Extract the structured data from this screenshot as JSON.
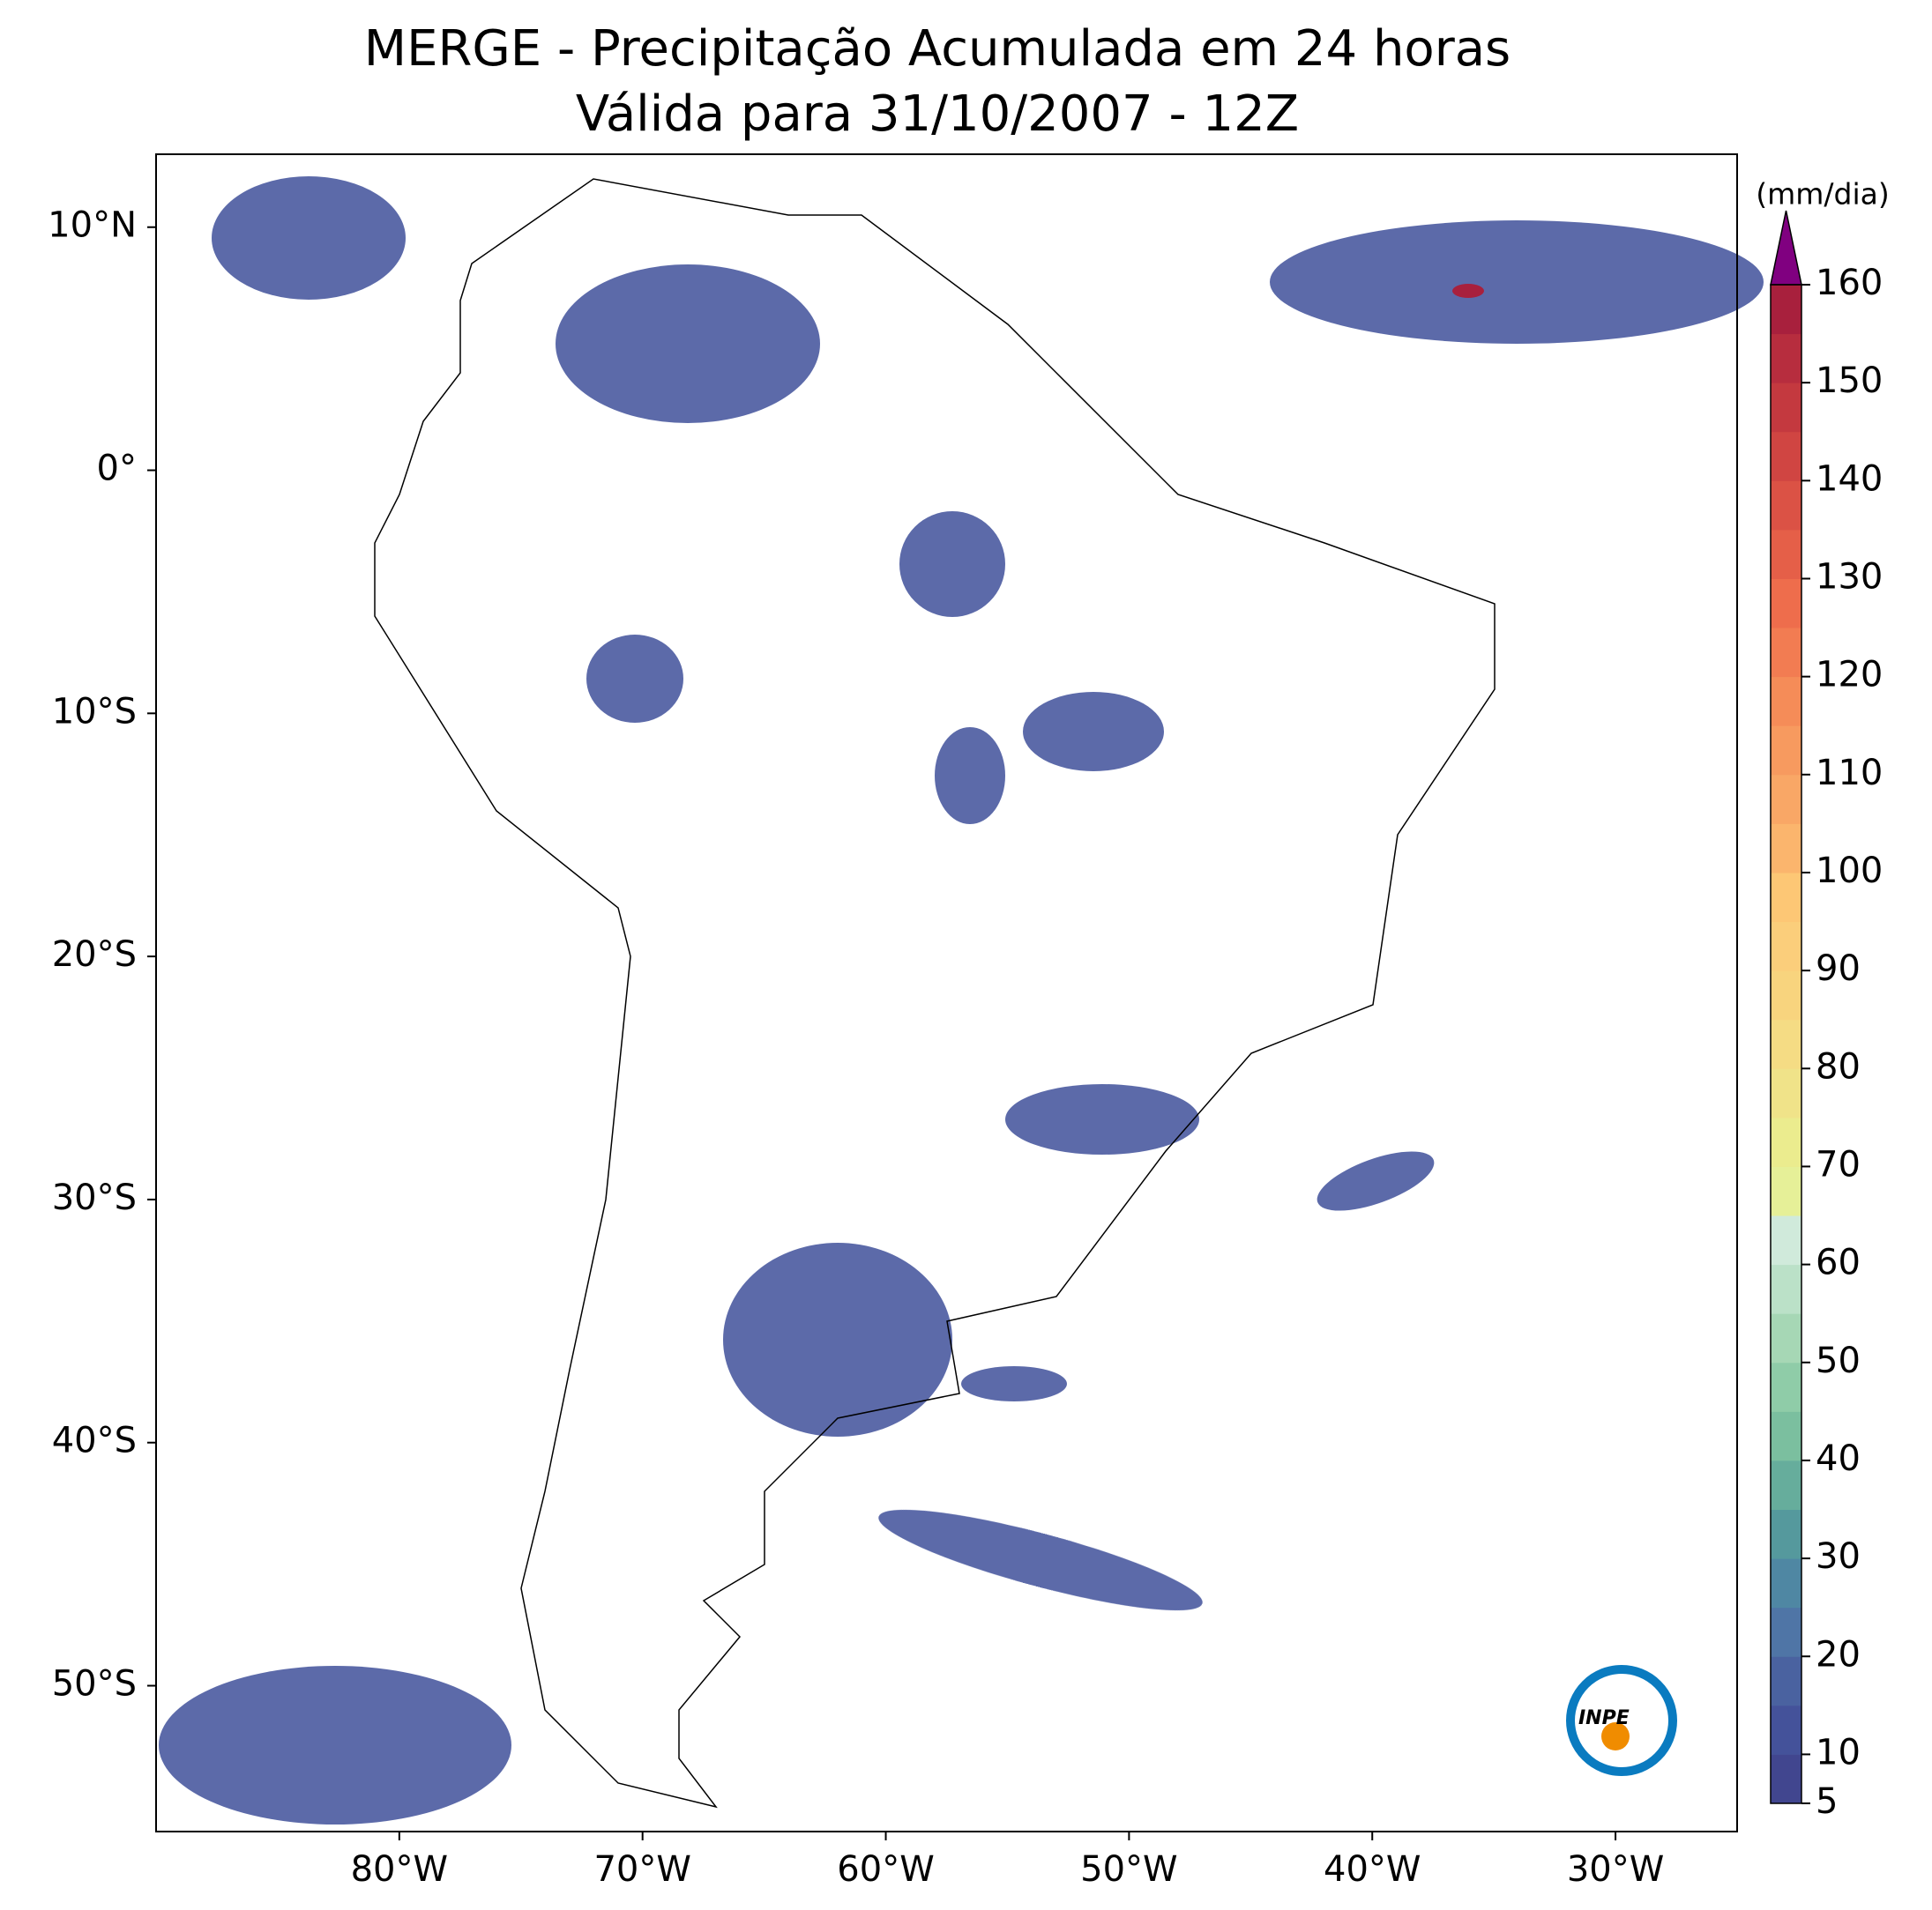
{
  "chart_data": {
    "type": "map",
    "title": "MERGE - Precipitação Acumulada em 24 horas",
    "subtitle": "Válida para 31/10/2007 - 12Z",
    "xlim": [
      -90,
      -25
    ],
    "ylim": [
      -56,
      13
    ],
    "xticks": [
      {
        "value": -80,
        "label": "80°W"
      },
      {
        "value": -70,
        "label": "70°W"
      },
      {
        "value": -60,
        "label": "60°W"
      },
      {
        "value": -50,
        "label": "50°W"
      },
      {
        "value": -40,
        "label": "40°W"
      },
      {
        "value": -30,
        "label": "30°W"
      }
    ],
    "yticks": [
      {
        "value": 10,
        "label": "10°N"
      },
      {
        "value": 0,
        "label": "0°"
      },
      {
        "value": -10,
        "label": "10°S"
      },
      {
        "value": -20,
        "label": "20°S"
      },
      {
        "value": -30,
        "label": "30°S"
      },
      {
        "value": -40,
        "label": "40°S"
      },
      {
        "value": -50,
        "label": "50°S"
      }
    ],
    "colorbar": {
      "label": "(mm/dia)",
      "clim": [
        5,
        160
      ],
      "extend_color": "#800080",
      "ticks": [
        5,
        10,
        20,
        30,
        40,
        50,
        60,
        70,
        80,
        90,
        100,
        110,
        120,
        130,
        140,
        150,
        160
      ],
      "colors": [
        "#41468f",
        "#44529a",
        "#4a62a0",
        "#4f75a6",
        "#4f87a3",
        "#55999d",
        "#66ad9c",
        "#7bbf9f",
        "#8fcca8",
        "#a6d7b5",
        "#bbe1c8",
        "#d0eadb",
        "#e6f098",
        "#ebec8e",
        "#f0e389",
        "#f5dc84",
        "#f8d47e",
        "#fbce7b",
        "#fdc775",
        "#fbb56d",
        "#f9a766",
        "#f79a5f",
        "#f58c58",
        "#f27c52",
        "#ee6d4c",
        "#e55f48",
        "#db5245",
        "#d04542",
        "#c4393f",
        "#b72d3e",
        "#a8203d"
      ]
    },
    "logo": "INPE"
  }
}
